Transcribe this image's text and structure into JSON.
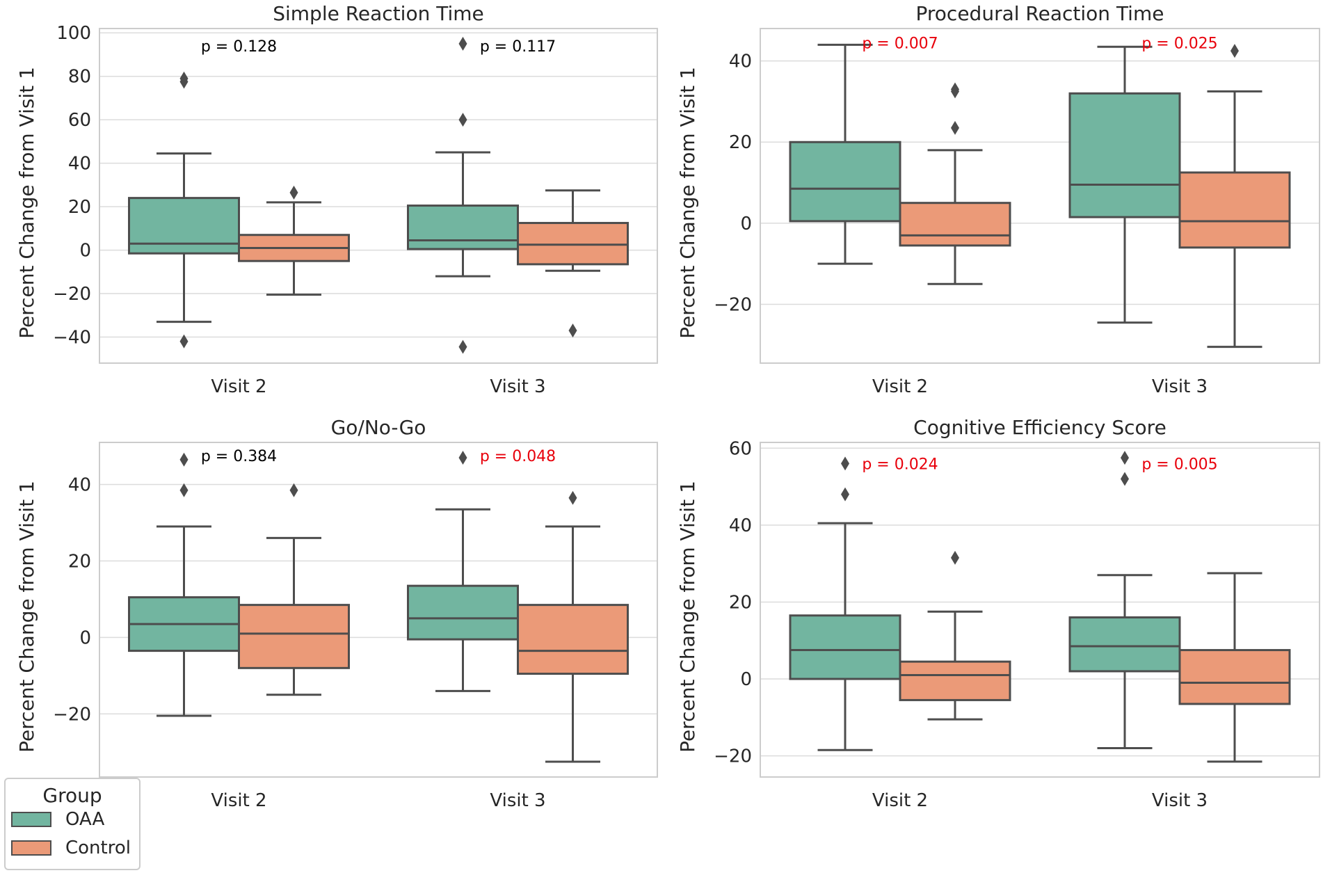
{
  "colors": {
    "oaa": "#72B5A0",
    "control": "#EB9A78",
    "line": "#4d4d4d",
    "grid": "#dcdcdc",
    "frame": "#cccccc",
    "sig": "#e8000b",
    "nonsig": "#000000"
  },
  "legend": {
    "title": "Group",
    "items": [
      {
        "label": "OAA",
        "color_key": "oaa"
      },
      {
        "label": "Control",
        "color_key": "control"
      }
    ]
  },
  "chart_data": [
    {
      "type": "box",
      "title": "Simple Reaction Time",
      "ylabel": "Percent Change from Visit 1",
      "ylim": [
        -52,
        102
      ],
      "yticks": [
        -40,
        -20,
        0,
        20,
        40,
        60,
        80,
        100
      ],
      "yticklabels": [
        "−40",
        "−20",
        "0",
        "20",
        "40",
        "60",
        "80",
        "100"
      ],
      "categories": [
        "Visit 2",
        "Visit 3"
      ],
      "series": [
        {
          "name": "OAA",
          "boxes": [
            {
              "whislo": -33,
              "q1": -1.5,
              "med": 3,
              "q3": 24,
              "whishi": 44.5,
              "fliers": [
                -42,
                77.5,
                79
              ]
            },
            {
              "whislo": -12,
              "q1": 0.5,
              "med": 4.5,
              "q3": 20.5,
              "whishi": 45,
              "fliers": [
                -44.5,
                60,
                95
              ]
            }
          ]
        },
        {
          "name": "Control",
          "boxes": [
            {
              "whislo": -20.5,
              "q1": -5,
              "med": 1,
              "q3": 7,
              "whishi": 22,
              "fliers": [
                26.5
              ]
            },
            {
              "whislo": -9.5,
              "q1": -6.5,
              "med": 2.5,
              "q3": 12.5,
              "whishi": 27.5,
              "fliers": [
                -37
              ]
            }
          ]
        }
      ],
      "pvalues": [
        {
          "text": "p = 0.128",
          "significant": false,
          "y": 94
        },
        {
          "text": "p = 0.117",
          "significant": false,
          "y": 94
        }
      ]
    },
    {
      "type": "box",
      "title": "Procedural Reaction Time",
      "ylabel": "Percent Change from Visit 1",
      "ylim": [
        -34.5,
        48
      ],
      "yticks": [
        -20,
        0,
        20,
        40
      ],
      "yticklabels": [
        "−20",
        "0",
        "20",
        "40"
      ],
      "categories": [
        "Visit 2",
        "Visit 3"
      ],
      "series": [
        {
          "name": "OAA",
          "boxes": [
            {
              "whislo": -10,
              "q1": 0.5,
              "med": 8.5,
              "q3": 20,
              "whishi": 44,
              "fliers": []
            },
            {
              "whislo": -24.5,
              "q1": 1.5,
              "med": 9.5,
              "q3": 32,
              "whishi": 43.5,
              "fliers": []
            }
          ]
        },
        {
          "name": "Control",
          "boxes": [
            {
              "whislo": -15,
              "q1": -5.5,
              "med": -3,
              "q3": 5,
              "whishi": 18,
              "fliers": [
                23.5,
                32.5,
                33
              ]
            },
            {
              "whislo": -30.5,
              "q1": -6,
              "med": 0.5,
              "q3": 12.5,
              "whishi": 32.5,
              "fliers": [
                42.5
              ]
            }
          ]
        }
      ],
      "pvalues": [
        {
          "text": "p = 0.007",
          "significant": true,
          "y": 44.5
        },
        {
          "text": "p = 0.025",
          "significant": true,
          "y": 44.5
        }
      ]
    },
    {
      "type": "box",
      "title": "Go/No-Go",
      "ylabel": "Percent Change from Visit 1",
      "ylim": [
        -36.5,
        51
      ],
      "yticks": [
        -20,
        0,
        20,
        40
      ],
      "yticklabels": [
        "−20",
        "0",
        "20",
        "40"
      ],
      "categories": [
        "Visit 2",
        "Visit 3"
      ],
      "series": [
        {
          "name": "OAA",
          "boxes": [
            {
              "whislo": -20.5,
              "q1": -3.5,
              "med": 3.5,
              "q3": 10.5,
              "whishi": 29,
              "fliers": [
                38.5,
                46.5
              ]
            },
            {
              "whislo": -14,
              "q1": -0.5,
              "med": 5,
              "q3": 13.5,
              "whishi": 33.5,
              "fliers": [
                47
              ]
            }
          ]
        },
        {
          "name": "Control",
          "boxes": [
            {
              "whislo": -15,
              "q1": -8,
              "med": 1,
              "q3": 8.5,
              "whishi": 26,
              "fliers": [
                38.5
              ]
            },
            {
              "whislo": -32.5,
              "q1": -9.5,
              "med": -3.5,
              "q3": 8.5,
              "whishi": 29,
              "fliers": [
                36.5
              ]
            }
          ]
        }
      ],
      "pvalues": [
        {
          "text": "p = 0.384",
          "significant": false,
          "y": 47.5
        },
        {
          "text": "p = 0.048",
          "significant": true,
          "y": 47.5
        }
      ]
    },
    {
      "type": "box",
      "title": "Cognitive Efficiency Score",
      "ylabel": "Percent Change from Visit 1",
      "ylim": [
        -25.5,
        61.5
      ],
      "yticks": [
        -20,
        0,
        20,
        40,
        60
      ],
      "yticklabels": [
        "−20",
        "0",
        "20",
        "40",
        "60"
      ],
      "categories": [
        "Visit 2",
        "Visit 3"
      ],
      "series": [
        {
          "name": "OAA",
          "boxes": [
            {
              "whislo": -18.5,
              "q1": 0,
              "med": 7.5,
              "q3": 16.5,
              "whishi": 40.5,
              "fliers": [
                48,
                56
              ]
            },
            {
              "whislo": -18,
              "q1": 2,
              "med": 8.5,
              "q3": 16,
              "whishi": 27,
              "fliers": [
                52,
                57.5
              ]
            }
          ]
        },
        {
          "name": "Control",
          "boxes": [
            {
              "whislo": -10.5,
              "q1": -5.5,
              "med": 1,
              "q3": 4.5,
              "whishi": 17.5,
              "fliers": [
                31.5
              ]
            },
            {
              "whislo": -21.5,
              "q1": -6.5,
              "med": -1,
              "q3": 7.5,
              "whishi": 27.5,
              "fliers": []
            }
          ]
        }
      ],
      "pvalues": [
        {
          "text": "p = 0.024",
          "significant": true,
          "y": 56
        },
        {
          "text": "p = 0.005",
          "significant": true,
          "y": 56
        }
      ]
    }
  ]
}
